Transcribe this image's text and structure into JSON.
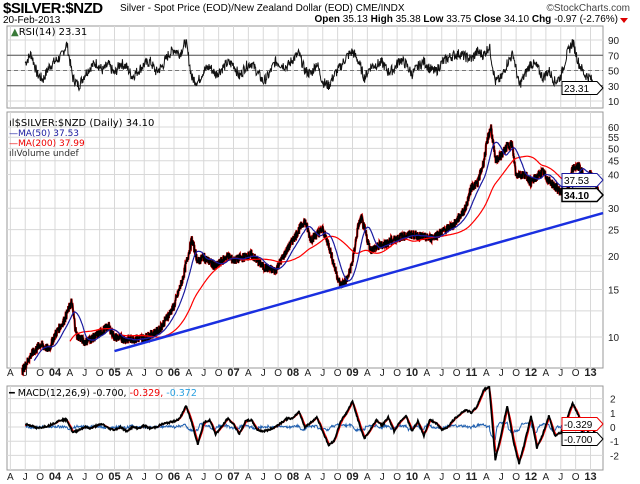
{
  "header": {
    "symbol": "$SILVER:$NZD",
    "description": "Silver - Spot Price (EOD)/New Zealand Dollar (EOD)  CME/INDX",
    "date": "20-Feb-2013",
    "logo": "©StockCharts.com",
    "open_label": "Open",
    "open": "35.13",
    "high_label": "High",
    "high": "35.38",
    "low_label": "Low",
    "low": "33.75",
    "close_label": "Close",
    "close": "34.10",
    "chg_label": "Chg",
    "chg": "-0.97 (-2.76%)",
    "chg_icon": "down-triangle-icon"
  },
  "colors": {
    "price": "#000000",
    "price_down": "#e00000",
    "ma50": "#1a1aa0",
    "ma200": "#ff0000",
    "trendline": "#1a2fe0",
    "rsi_fill": "#3a7a3a",
    "macd": "#000000",
    "signal": "#ff0000",
    "histogram": "#2060b0",
    "grid": "#d8d8d8"
  },
  "rsi_legend": "RSI(14) 23.31",
  "rsi_value_label": "23.31",
  "price_legend": {
    "main": "$SILVER:$NZD (Daily) 34.10",
    "ma50": "MA(50) 37.53",
    "ma200": "MA(200) 37.99",
    "volume": "Volume undef"
  },
  "price_value_labels": {
    "ma50": "37.53",
    "close": "34.10"
  },
  "macd_legend": {
    "main": "MACD(12,26,9) -0.700,",
    "signal": " -0.329,",
    "hist": " -0.372"
  },
  "macd_value_labels": {
    "signal": "-0.329",
    "macd": "-0.700"
  },
  "chart_data": [
    {
      "type": "line",
      "title": "RSI(14)",
      "ylim": [
        0,
        100
      ],
      "yticks": [
        "90",
        "70",
        "50",
        "30",
        "10"
      ],
      "ytick_values": [
        90,
        70,
        50,
        30,
        10
      ],
      "levels": [
        70,
        50,
        30
      ],
      "x_start": 2003.5,
      "x_step": 0.1,
      "values": [
        60,
        72,
        45,
        38,
        55,
        62,
        68,
        85,
        40,
        30,
        45,
        55,
        60,
        50,
        58,
        45,
        60,
        55,
        42,
        50,
        58,
        62,
        48,
        55,
        70,
        78,
        72,
        88,
        40,
        35,
        50,
        55,
        45,
        52,
        60,
        58,
        42,
        55,
        60,
        48,
        35,
        45,
        62,
        58,
        55,
        65,
        72,
        50,
        45,
        60,
        35,
        30,
        45,
        55,
        68,
        75,
        62,
        40,
        55,
        58,
        60,
        48,
        52,
        65,
        58,
        45,
        55,
        62,
        52,
        48,
        60,
        66,
        70,
        72,
        68,
        65,
        75,
        70,
        82,
        35,
        40,
        60,
        72,
        30,
        45,
        60,
        55,
        40,
        50,
        35,
        42,
        70,
        88,
        60,
        45,
        40,
        23.31
      ]
    },
    {
      "type": "line",
      "title": "$SILVER:$NZD (Daily)",
      "scale": "log",
      "yticks": [
        "60",
        "55",
        "50",
        "45",
        "40",
        "30",
        "25",
        "20",
        "15",
        "10"
      ],
      "ytick_values": [
        60,
        55,
        50,
        45,
        40,
        30,
        25,
        20,
        15,
        10
      ],
      "price": [
        [
          2003.45,
          7.5
        ],
        [
          2003.6,
          8.6
        ],
        [
          2003.75,
          9.4
        ],
        [
          2003.9,
          9.0
        ],
        [
          2004.0,
          10.2
        ],
        [
          2004.15,
          11.5
        ],
        [
          2004.28,
          13.5
        ],
        [
          2004.36,
          10.2
        ],
        [
          2004.5,
          9.6
        ],
        [
          2004.7,
          10.1
        ],
        [
          2004.9,
          11.0
        ],
        [
          2005.0,
          10.0
        ],
        [
          2005.2,
          9.8
        ],
        [
          2005.5,
          9.9
        ],
        [
          2005.75,
          10.6
        ],
        [
          2006.0,
          13.0
        ],
        [
          2006.15,
          16.5
        ],
        [
          2006.3,
          23.0
        ],
        [
          2006.4,
          19.0
        ],
        [
          2006.5,
          19.8
        ],
        [
          2006.7,
          18.2
        ],
        [
          2006.9,
          20.0
        ],
        [
          2007.0,
          19.2
        ],
        [
          2007.3,
          20.2
        ],
        [
          2007.5,
          18.2
        ],
        [
          2007.7,
          17.6
        ],
        [
          2007.9,
          21.0
        ],
        [
          2008.1,
          25.0
        ],
        [
          2008.2,
          27.0
        ],
        [
          2008.3,
          23.0
        ],
        [
          2008.5,
          25.0
        ],
        [
          2008.6,
          22.0
        ],
        [
          2008.72,
          17.5
        ],
        [
          2008.8,
          15.5
        ],
        [
          2008.92,
          16.5
        ],
        [
          2009.0,
          19.0
        ],
        [
          2009.1,
          26.0
        ],
        [
          2009.15,
          27.5
        ],
        [
          2009.3,
          21.0
        ],
        [
          2009.5,
          22.0
        ],
        [
          2009.8,
          23.5
        ],
        [
          2010.0,
          24.0
        ],
        [
          2010.3,
          23.2
        ],
        [
          2010.5,
          24.5
        ],
        [
          2010.7,
          26.0
        ],
        [
          2010.9,
          30.0
        ],
        [
          2011.0,
          36.0
        ],
        [
          2011.1,
          37.0
        ],
        [
          2011.2,
          44.0
        ],
        [
          2011.28,
          55.0
        ],
        [
          2011.33,
          60.0
        ],
        [
          2011.4,
          45.0
        ],
        [
          2011.5,
          47.0
        ],
        [
          2011.6,
          51.0
        ],
        [
          2011.68,
          52.0
        ],
        [
          2011.75,
          40.0
        ],
        [
          2011.9,
          40.0
        ],
        [
          2012.0,
          37.5
        ],
        [
          2012.2,
          41.0
        ],
        [
          2012.3,
          38.0
        ],
        [
          2012.5,
          34.5
        ],
        [
          2012.6,
          33.5
        ],
        [
          2012.7,
          42.0
        ],
        [
          2012.8,
          43.0
        ],
        [
          2012.9,
          39.0
        ],
        [
          2013.0,
          40.0
        ],
        [
          2013.08,
          37.5
        ],
        [
          2013.14,
          34.1
        ]
      ],
      "trendline": [
        [
          2005.0,
          8.87
        ],
        [
          2013.25,
          28.8
        ]
      ],
      "series": [
        {
          "name": "MA(50)",
          "last": 37.53
        },
        {
          "name": "MA(200)",
          "last": 37.99
        }
      ]
    },
    {
      "type": "line",
      "title": "MACD(12,26,9)",
      "ylim": [
        -3,
        3
      ],
      "yticks": [
        "2",
        "1",
        "0",
        "-1",
        "-2"
      ],
      "ytick_values": [
        2,
        1,
        0,
        -1,
        -2
      ],
      "x_start": 2003.5,
      "x_step": 0.1,
      "macd": [
        0.2,
        0.1,
        -0.1,
        0.0,
        0.1,
        0.3,
        0.5,
        0.5,
        -0.4,
        -0.2,
        0.0,
        -0.1,
        0.1,
        0.2,
        -0.1,
        -0.2,
        0.0,
        -0.3,
        0.0,
        -0.1,
        0.1,
        -0.1,
        0.0,
        0.2,
        0.3,
        0.4,
        0.6,
        1.5,
        0.3,
        -1.2,
        0.3,
        0.5,
        -0.5,
        0.0,
        0.6,
        0.2,
        -0.5,
        0.4,
        0.5,
        -0.2,
        -0.3,
        -0.2,
        0.0,
        0.3,
        0.6,
        0.6,
        1.1,
        0.0,
        0.3,
        0.7,
        -0.3,
        -1.3,
        -0.9,
        0.4,
        1.0,
        1.8,
        0.4,
        -0.8,
        -0.2,
        0.5,
        0.1,
        0.7,
        -0.3,
        0.4,
        0.8,
        -0.3,
        0.4,
        -0.6,
        0.5,
        0.3,
        -0.2,
        0.0,
        0.5,
        0.9,
        1.2,
        1.0,
        1.5,
        2.6,
        2.8,
        -2.3,
        -0.5,
        1.5,
        -0.9,
        -2.6,
        -1.0,
        0.8,
        -1.5,
        -0.5,
        0.8,
        -0.6,
        -0.4,
        0.5,
        1.7,
        0.8,
        -1.0,
        0.2,
        -0.7
      ]
    }
  ],
  "x_axis": {
    "start": 2003.25,
    "step": 0.25,
    "labels": [
      "A",
      "J",
      "O",
      "04",
      "A",
      "J",
      "O",
      "05",
      "A",
      "J",
      "O",
      "06",
      "A",
      "J",
      "O",
      "07",
      "A",
      "J",
      "O",
      "08",
      "A",
      "J",
      "O",
      "09",
      "A",
      "J",
      "O",
      "10",
      "A",
      "J",
      "O",
      "11",
      "A",
      "J",
      "O",
      "12",
      "A",
      "J",
      "O",
      "13"
    ]
  }
}
